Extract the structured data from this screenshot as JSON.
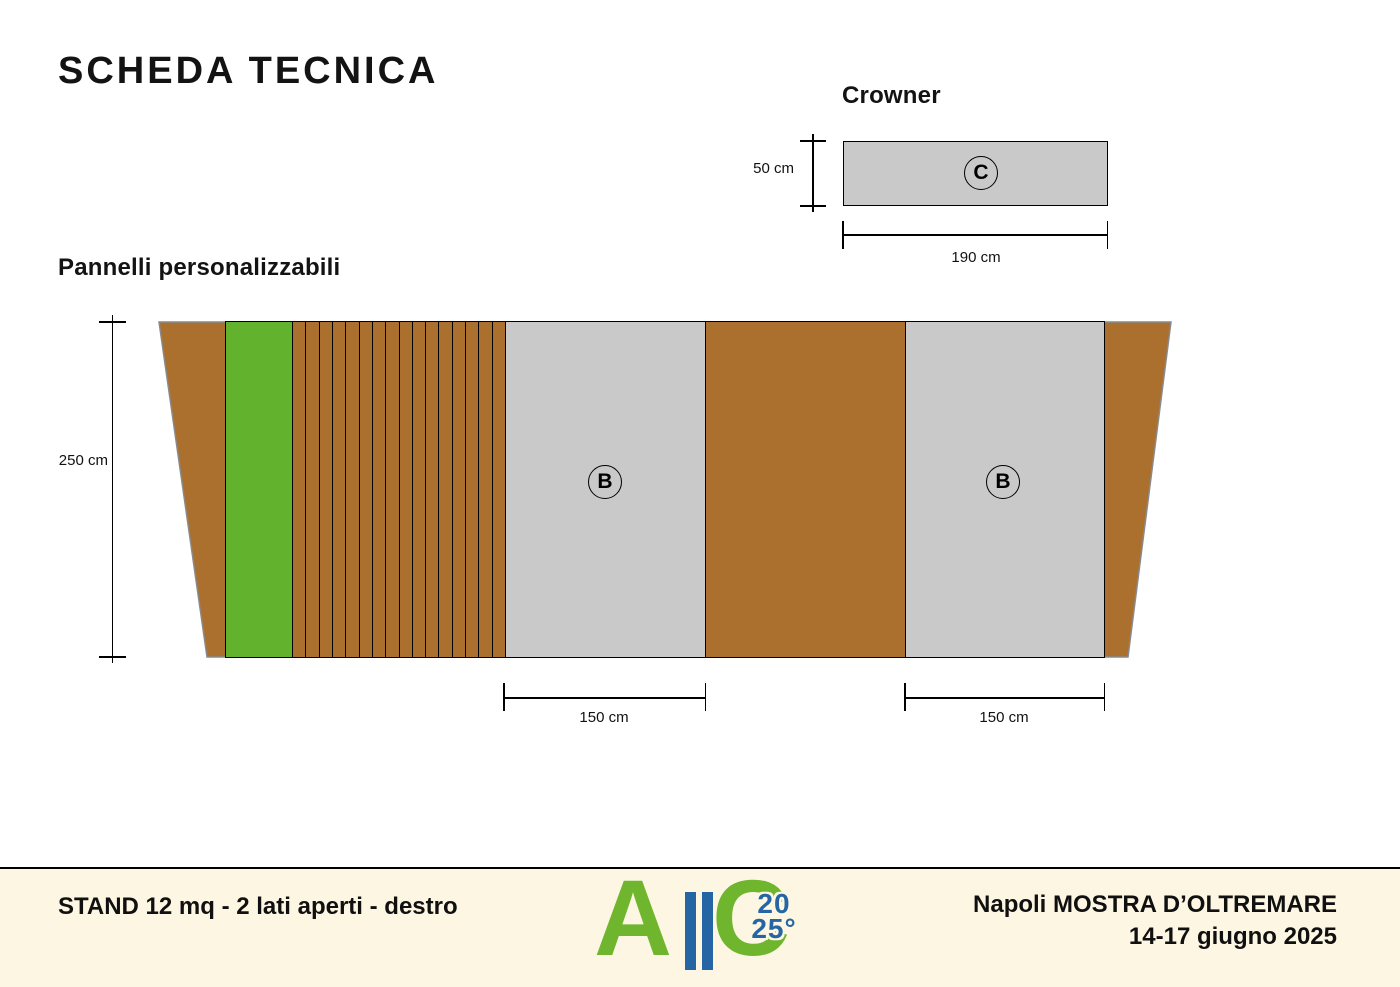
{
  "page": {
    "title": "SCHEDA TECNICA"
  },
  "sections": {
    "crowner": {
      "label": "Crowner",
      "panel_letter": "C",
      "height_dim": "50 cm",
      "width_dim": "190 cm"
    },
    "panels": {
      "label": "Pannelli personalizzabili",
      "height_dim": "250 cm",
      "panel_b1_letter": "B",
      "panel_b2_letter": "B",
      "panel_b1_width_dim": "150 cm",
      "panel_b2_width_dim": "150 cm",
      "slat_count": 16
    }
  },
  "footer": {
    "stand_info": "STAND 12 mq - 2 lati aperti - destro",
    "venue": "Napoli MOSTRA D’OLTREMARE",
    "dates": "14-17 giugno 2025",
    "logo": {
      "letter_a": "A",
      "letter_c": "C",
      "year_top": "20",
      "year_bottom": "25°"
    }
  },
  "colors": {
    "wood": "#AB702E",
    "green": "#62B22E",
    "panel-gray": "#C9C9C9",
    "footer-bg": "#FDF6E3",
    "logo-green": "#6FB62E",
    "logo-blue": "#2565A3"
  }
}
